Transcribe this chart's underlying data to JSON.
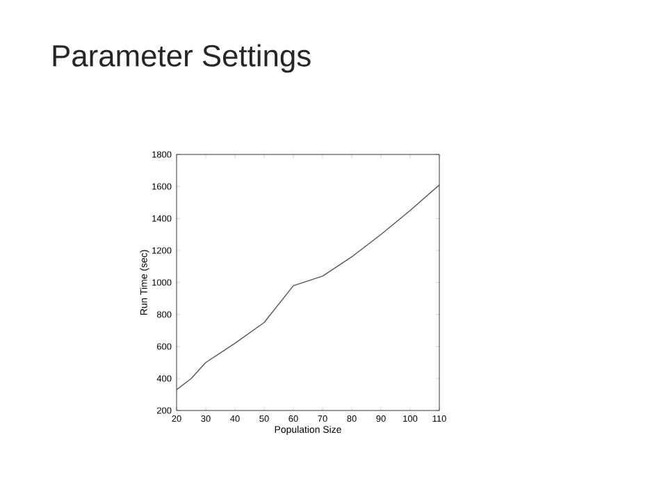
{
  "chart_data": {
    "type": "line",
    "title": "Parameter Settings",
    "xlabel": "Population Size",
    "ylabel": "Run Time (sec)",
    "x": [
      20,
      25,
      30,
      40,
      50,
      60,
      70,
      80,
      90,
      100,
      110
    ],
    "series": [
      {
        "color": "#555555",
        "values": [
          330,
          400,
          500,
          620,
          750,
          980,
          1040,
          1160,
          1300,
          1450,
          1610
        ]
      }
    ],
    "xlim": [
      20,
      110
    ],
    "ylim": [
      200,
      1800
    ],
    "xticks": [
      20,
      30,
      40,
      50,
      60,
      70,
      80,
      90,
      100,
      110
    ],
    "yticks": [
      200,
      400,
      600,
      800,
      1000,
      1200,
      1400,
      1600,
      1800
    ],
    "grid": false,
    "marker": "none",
    "line_style": "solid"
  }
}
